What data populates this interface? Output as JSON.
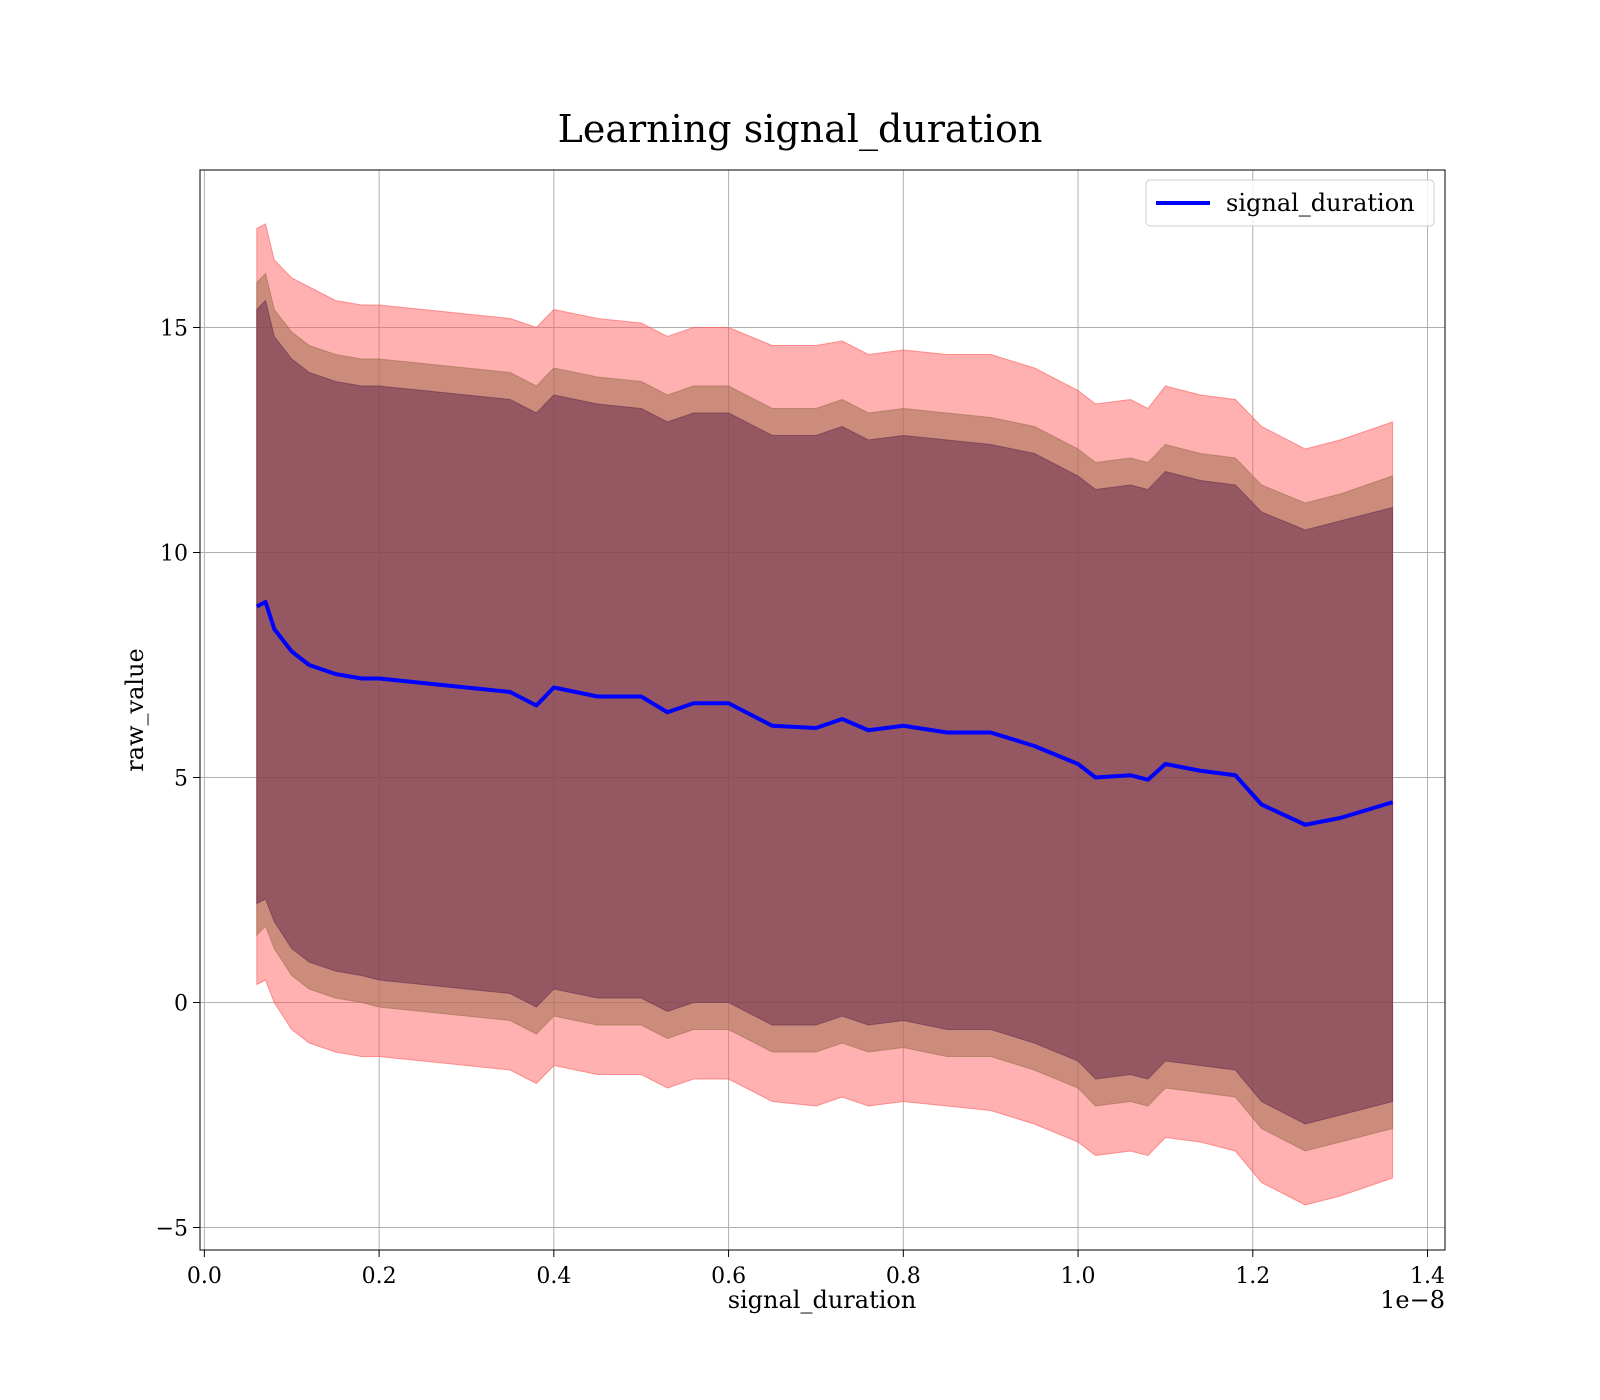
{
  "chart_data": {
    "type": "area",
    "title": "Learning signal_duration",
    "xlabel": "signal_duration",
    "ylabel": "raw_value",
    "x_offset_label": "1e−8",
    "x_scale": 1e-08,
    "xlim": [
      -0.005,
      1.42
    ],
    "ylim": [
      -5.5,
      18.5
    ],
    "x_ticks": [
      0.0,
      0.2,
      0.4,
      0.6,
      0.8,
      1.0,
      1.2,
      1.4
    ],
    "x_tick_labels": [
      "0.0",
      "0.2",
      "0.4",
      "0.6",
      "0.8",
      "1.0",
      "1.2",
      "1.4"
    ],
    "y_ticks": [
      -5,
      0,
      5,
      10,
      15
    ],
    "y_tick_labels": [
      "−5",
      "0",
      "5",
      "10",
      "15"
    ],
    "grid": true,
    "legend": {
      "position": "top-right",
      "entries": [
        "signal_duration"
      ]
    },
    "colors": {
      "mean_line": "#0000ff",
      "band_outer": "#ff5a5a",
      "band_middle": "#a07050",
      "band_inner": "#6a2e50"
    },
    "x": [
      0.06,
      0.07,
      0.08,
      0.1,
      0.12,
      0.15,
      0.18,
      0.2,
      0.25,
      0.3,
      0.35,
      0.38,
      0.4,
      0.45,
      0.5,
      0.53,
      0.56,
      0.6,
      0.65,
      0.7,
      0.73,
      0.76,
      0.8,
      0.85,
      0.9,
      0.95,
      1.0,
      1.02,
      1.06,
      1.08,
      1.1,
      1.14,
      1.18,
      1.21,
      1.26,
      1.3,
      1.36
    ],
    "series": [
      {
        "name": "signal_duration",
        "values": [
          8.8,
          8.9,
          8.3,
          7.8,
          7.5,
          7.3,
          7.2,
          7.2,
          7.1,
          7.0,
          6.9,
          6.6,
          7.0,
          6.8,
          6.8,
          6.45,
          6.65,
          6.65,
          6.15,
          6.1,
          6.3,
          6.05,
          6.15,
          6.0,
          6.0,
          5.7,
          5.3,
          5.0,
          5.05,
          4.95,
          5.3,
          5.15,
          5.05,
          4.4,
          3.95,
          4.1,
          4.45
        ]
      }
    ],
    "bands": [
      {
        "level": "outer",
        "upper": [
          17.2,
          17.3,
          16.5,
          16.1,
          15.9,
          15.6,
          15.5,
          15.5,
          15.4,
          15.3,
          15.2,
          15.0,
          15.4,
          15.2,
          15.1,
          14.8,
          15.0,
          15.0,
          14.6,
          14.6,
          14.7,
          14.4,
          14.5,
          14.4,
          14.4,
          14.1,
          13.6,
          13.3,
          13.4,
          13.2,
          13.7,
          13.5,
          13.4,
          12.8,
          12.3,
          12.5,
          12.9
        ],
        "lower": [
          0.4,
          0.5,
          0.0,
          -0.6,
          -0.9,
          -1.1,
          -1.2,
          -1.2,
          -1.3,
          -1.4,
          -1.5,
          -1.8,
          -1.4,
          -1.6,
          -1.6,
          -1.9,
          -1.7,
          -1.7,
          -2.2,
          -2.3,
          -2.1,
          -2.3,
          -2.2,
          -2.3,
          -2.4,
          -2.7,
          -3.1,
          -3.4,
          -3.3,
          -3.4,
          -3.0,
          -3.1,
          -3.3,
          -4.0,
          -4.5,
          -4.3,
          -3.9
        ]
      },
      {
        "level": "middle",
        "upper": [
          16.0,
          16.2,
          15.4,
          14.9,
          14.6,
          14.4,
          14.3,
          14.3,
          14.2,
          14.1,
          14.0,
          13.7,
          14.1,
          13.9,
          13.8,
          13.5,
          13.7,
          13.7,
          13.2,
          13.2,
          13.4,
          13.1,
          13.2,
          13.1,
          13.0,
          12.8,
          12.3,
          12.0,
          12.1,
          12.0,
          12.4,
          12.2,
          12.1,
          11.5,
          11.1,
          11.3,
          11.7
        ],
        "lower": [
          1.5,
          1.7,
          1.2,
          0.6,
          0.3,
          0.1,
          0.0,
          -0.1,
          -0.2,
          -0.3,
          -0.4,
          -0.7,
          -0.3,
          -0.5,
          -0.5,
          -0.8,
          -0.6,
          -0.6,
          -1.1,
          -1.1,
          -0.9,
          -1.1,
          -1.0,
          -1.2,
          -1.2,
          -1.5,
          -1.9,
          -2.3,
          -2.2,
          -2.3,
          -1.9,
          -2.0,
          -2.1,
          -2.8,
          -3.3,
          -3.1,
          -2.8
        ]
      },
      {
        "level": "inner",
        "upper": [
          15.4,
          15.6,
          14.8,
          14.3,
          14.0,
          13.8,
          13.7,
          13.7,
          13.6,
          13.5,
          13.4,
          13.1,
          13.5,
          13.3,
          13.2,
          12.9,
          13.1,
          13.1,
          12.6,
          12.6,
          12.8,
          12.5,
          12.6,
          12.5,
          12.4,
          12.2,
          11.7,
          11.4,
          11.5,
          11.4,
          11.8,
          11.6,
          11.5,
          10.9,
          10.5,
          10.7,
          11.0
        ],
        "lower": [
          2.2,
          2.3,
          1.8,
          1.2,
          0.9,
          0.7,
          0.6,
          0.5,
          0.4,
          0.3,
          0.2,
          -0.1,
          0.3,
          0.1,
          0.1,
          -0.2,
          0.0,
          0.0,
          -0.5,
          -0.5,
          -0.3,
          -0.5,
          -0.4,
          -0.6,
          -0.6,
          -0.9,
          -1.3,
          -1.7,
          -1.6,
          -1.7,
          -1.3,
          -1.4,
          -1.5,
          -2.2,
          -2.7,
          -2.5,
          -2.2
        ]
      }
    ]
  }
}
